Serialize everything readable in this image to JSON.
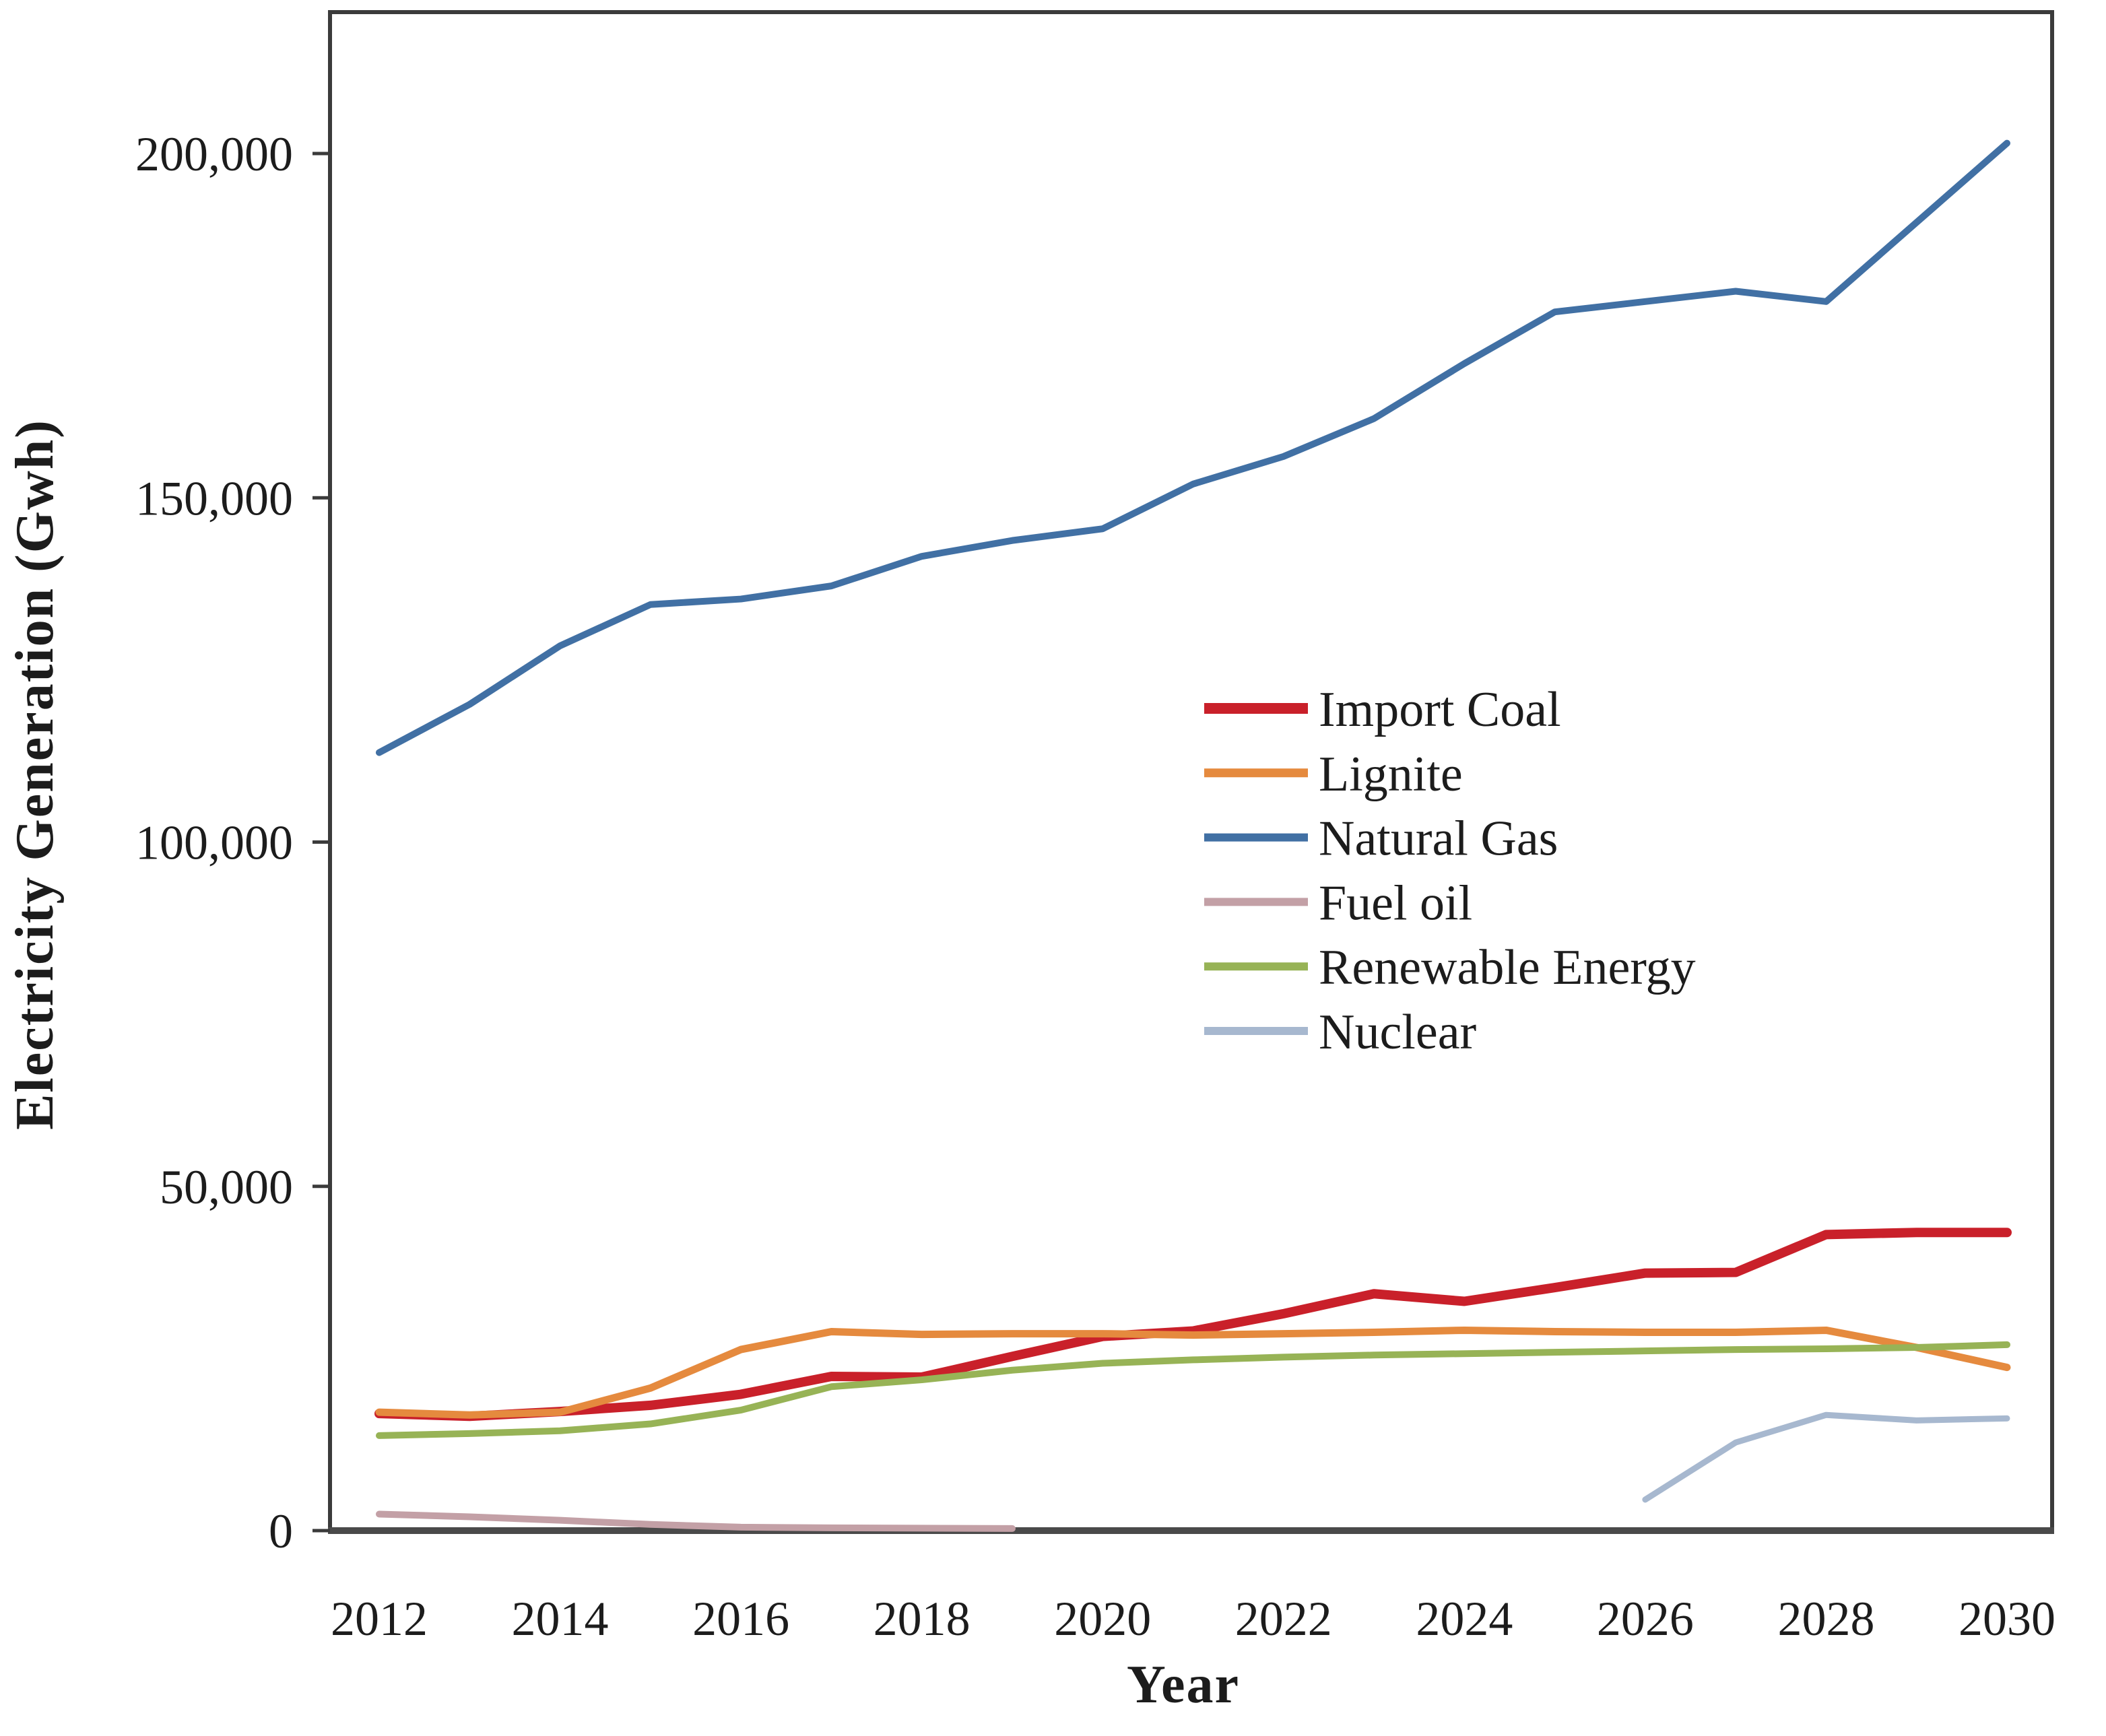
{
  "figure": {
    "background": "#ffffff",
    "frame_color": "#3b3b3b",
    "axis_color": "#4a4a4a",
    "text_color": "#1c1c1c"
  },
  "chart_data": {
    "type": "line",
    "title": "",
    "xlabel": "Year",
    "ylabel": "Electricity Generation (Gwh)",
    "grid": false,
    "legend_position": "center-right",
    "xlim": [
      2011.45,
      2030.5
    ],
    "ylim": [
      0,
      220000
    ],
    "x": [
      2012,
      2013,
      2014,
      2015,
      2016,
      2017,
      2018,
      2019,
      2020,
      2021,
      2022,
      2023,
      2024,
      2025,
      2026,
      2027,
      2028,
      2029,
      2030
    ],
    "x_tick_years": [
      2012,
      2014,
      2016,
      2018,
      2020,
      2022,
      2024,
      2026,
      2028,
      2030
    ],
    "x_tick_labels": [
      "2012",
      "2014",
      "2016",
      "2018",
      "2020",
      "2022",
      "2024",
      "2026",
      "2028",
      "2030"
    ],
    "y_ticks": [
      0,
      50000,
      100000,
      150000,
      200000
    ],
    "y_tick_labels": [
      "0",
      "50,000",
      "100,000",
      "150,000",
      "200,000"
    ],
    "series": [
      {
        "name": "Import Coal",
        "color": "#c9202a",
        "stroke_width": 14,
        "values": [
          17000,
          16600,
          17300,
          18200,
          19800,
          22400,
          22300,
          25300,
          28200,
          29000,
          31500,
          34400,
          33300,
          35300,
          37400,
          37500,
          43000,
          43300,
          43300
        ]
      },
      {
        "name": "Lignite",
        "color": "#e58a3e",
        "stroke_width": 11,
        "values": [
          17200,
          16800,
          17200,
          20700,
          26300,
          28900,
          28500,
          28600,
          28600,
          28400,
          28600,
          28800,
          29100,
          28900,
          28800,
          28800,
          29100,
          26600,
          23700
        ]
      },
      {
        "name": "Natural Gas",
        "color": "#4170a4",
        "stroke_width": 10,
        "values": [
          113000,
          120000,
          128500,
          134500,
          135300,
          137200,
          141500,
          143800,
          145500,
          152000,
          156000,
          161500,
          169500,
          177000,
          178500,
          180000,
          178500,
          190000,
          201500
        ]
      },
      {
        "name": "Fuel oil",
        "color": "#c3a0a6",
        "stroke_width": 10,
        "values": [
          2400,
          2000,
          1500,
          900,
          500,
          400,
          350,
          300,
          null,
          null,
          null,
          null,
          null,
          null,
          null,
          null,
          null,
          null,
          null
        ]
      },
      {
        "name": "Renewable Energy",
        "color": "#97b356",
        "stroke_width": 10,
        "values": [
          13800,
          14100,
          14500,
          15500,
          17500,
          20900,
          21900,
          23300,
          24300,
          24800,
          25200,
          25500,
          25700,
          25900,
          26100,
          26300,
          26400,
          26600,
          27000
        ]
      },
      {
        "name": "Nuclear",
        "color": "#a7b8cf",
        "stroke_width": 9,
        "values": [
          null,
          null,
          null,
          null,
          null,
          null,
          null,
          null,
          null,
          null,
          null,
          null,
          null,
          null,
          4500,
          12800,
          16800,
          16000,
          16300
        ]
      }
    ]
  }
}
